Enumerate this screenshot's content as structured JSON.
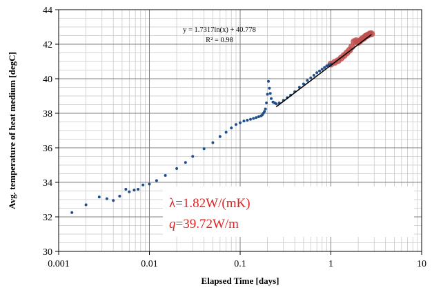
{
  "chart_data": {
    "type": "scatter",
    "xscale": "log",
    "xlim": [
      0.001,
      10
    ],
    "ylim": [
      30,
      44
    ],
    "xticks": [
      0.001,
      0.01,
      0.1,
      1,
      10
    ],
    "xtick_labels": [
      "0.001",
      "0.01",
      "0.1",
      "1",
      "10"
    ],
    "yticks": [
      30,
      32,
      34,
      36,
      38,
      40,
      42,
      44
    ],
    "ytick_labels": [
      "30",
      "32",
      "34",
      "36",
      "38",
      "40",
      "42",
      "44"
    ],
    "xlabel": "Elapsed Time [days]",
    "ylabel": "Avg. temperature of heat medium [degC]",
    "grid": true,
    "series": [
      {
        "kind": "measured",
        "color": "#1f4e8c",
        "x": [
          0.0014,
          0.002,
          0.0028,
          0.0034,
          0.004,
          0.0047,
          0.0055,
          0.006,
          0.0068,
          0.0075,
          0.0085,
          0.01,
          0.012,
          0.015,
          0.02,
          0.025,
          0.03,
          0.04,
          0.05,
          0.06,
          0.07,
          0.08,
          0.09,
          0.1,
          0.11,
          0.12,
          0.13,
          0.14,
          0.15,
          0.16,
          0.17,
          0.175,
          0.18,
          0.185,
          0.19,
          0.195,
          0.2,
          0.205,
          0.21,
          0.215,
          0.22,
          0.23,
          0.24,
          0.25,
          0.27,
          0.3,
          0.33,
          0.36,
          0.4,
          0.45,
          0.5,
          0.55,
          0.6,
          0.65,
          0.7,
          0.75,
          0.8,
          0.85,
          0.9,
          0.95,
          1.0
        ],
        "y": [
          32.25,
          32.7,
          33.15,
          33.05,
          32.95,
          33.2,
          33.6,
          33.45,
          33.55,
          33.6,
          33.85,
          33.9,
          34.1,
          34.4,
          34.8,
          35.15,
          35.5,
          35.95,
          36.3,
          36.65,
          36.9,
          37.15,
          37.35,
          37.45,
          37.55,
          37.6,
          37.65,
          37.7,
          37.75,
          37.8,
          37.85,
          37.9,
          38.0,
          38.1,
          38.25,
          38.6,
          39.1,
          39.85,
          39.45,
          39.15,
          38.85,
          38.65,
          38.6,
          38.55,
          38.6,
          38.75,
          38.9,
          39.05,
          39.25,
          39.5,
          39.7,
          39.9,
          40.05,
          40.2,
          40.35,
          40.45,
          40.55,
          40.65,
          40.75,
          40.8,
          40.85
        ]
      },
      {
        "kind": "fitted-range",
        "color": "#c0504d",
        "x": [
          1.0,
          1.1,
          1.2,
          1.3,
          1.4,
          1.5,
          1.6,
          1.7,
          1.8,
          1.9,
          2.0,
          2.1,
          2.2,
          2.3,
          2.4,
          2.5,
          2.6,
          2.7,
          2.8
        ],
        "y": [
          40.85,
          40.95,
          41.05,
          41.2,
          41.35,
          41.5,
          41.65,
          41.85,
          42.15,
          42.2,
          42.1,
          42.2,
          42.3,
          42.35,
          42.45,
          42.5,
          42.55,
          42.6,
          42.6
        ]
      }
    ],
    "trendline": {
      "color": "#000000",
      "equation": "y = 1.7317ln(x) + 40.778",
      "r2_label": "R² = 0.98",
      "a": 1.7317,
      "b": 40.778,
      "x_range": [
        0.25,
        2.8
      ]
    },
    "annotation": {
      "line1": "λ=1.82W/(mK)",
      "line2_var": "q",
      "line2_rest": "=39.72W/m",
      "color": "#e02020"
    }
  }
}
